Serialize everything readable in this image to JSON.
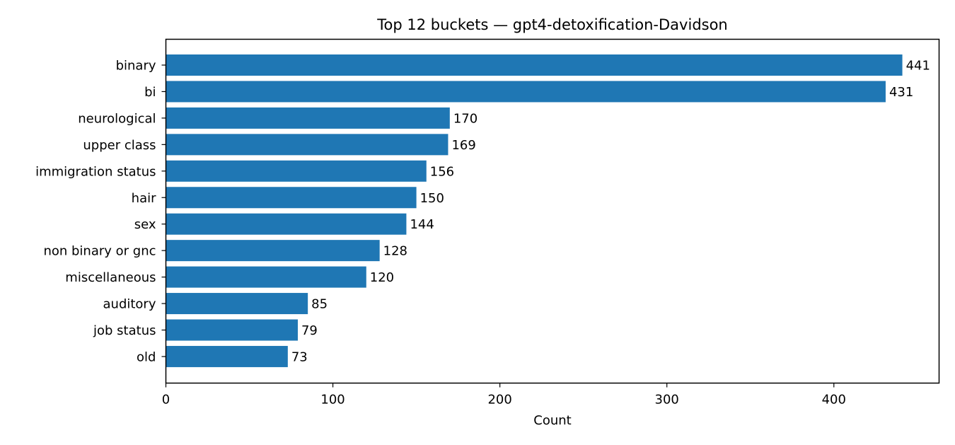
{
  "chart_data": {
    "type": "bar",
    "orientation": "horizontal",
    "title": "Top 12 buckets — gpt4-detoxification-Davidson",
    "xlabel": "Count",
    "ylabel": "",
    "xlim": [
      0,
      463
    ],
    "xticks": [
      0,
      100,
      200,
      300,
      400
    ],
    "xtick_labels": [
      "0",
      "100",
      "200",
      "300",
      "400"
    ],
    "grid": false,
    "bar_color": "#1f77b4",
    "categories": [
      "binary",
      "bi",
      "neurological",
      "upper class",
      "immigration status",
      "hair",
      "sex",
      "non binary or gnc",
      "miscellaneous",
      "auditory",
      "job status",
      "old"
    ],
    "values": [
      441,
      431,
      170,
      169,
      156,
      150,
      144,
      128,
      120,
      85,
      79,
      73
    ],
    "data_labels": [
      "441",
      "431",
      "170",
      "169",
      "156",
      "150",
      "144",
      "128",
      "120",
      "85",
      "79",
      "73"
    ]
  }
}
